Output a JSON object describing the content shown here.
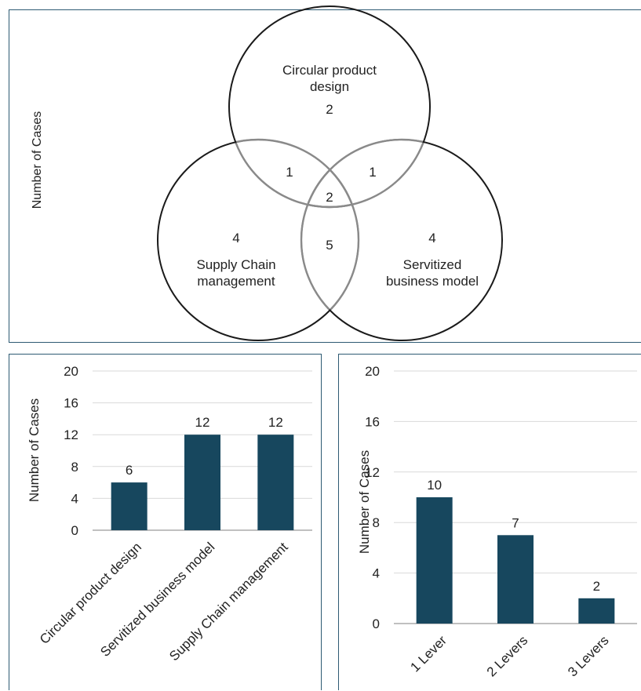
{
  "chart_data": [
    {
      "type": "venn",
      "ylabel": "Number of Cases",
      "sets": [
        {
          "name": "Circular product design",
          "label_lines": [
            "Circular product",
            "design"
          ],
          "only": 2
        },
        {
          "name": "Supply Chain management",
          "label_lines": [
            "Supply Chain",
            "management"
          ],
          "only": 4
        },
        {
          "name": "Servitized business model",
          "label_lines": [
            "Servitized",
            "business model"
          ],
          "only": 4
        }
      ],
      "intersections": [
        {
          "sets": [
            "Circular product design",
            "Supply Chain management"
          ],
          "value": 1
        },
        {
          "sets": [
            "Circular product design",
            "Servitized business model"
          ],
          "value": 1
        },
        {
          "sets": [
            "Circular product design",
            "Supply Chain management",
            "Servitized business model"
          ],
          "value": 2
        },
        {
          "sets": [
            "Supply Chain management",
            "Servitized business model"
          ],
          "value": 5
        }
      ]
    },
    {
      "type": "bar",
      "categories": [
        "Circular product design",
        "Servitized business model",
        "Supply Chain management"
      ],
      "values": [
        6,
        12,
        12
      ],
      "ylabel": "Number of Cases",
      "ylim": [
        0,
        20
      ],
      "yticks": [
        0,
        4,
        8,
        12,
        16,
        20
      ],
      "grid": true,
      "bar_color": "#17475e"
    },
    {
      "type": "bar",
      "categories": [
        "1 Lever",
        "2 Levers",
        "3 Levers"
      ],
      "values": [
        10,
        7,
        2
      ],
      "ylabel": "Number of Cases",
      "ylim": [
        0,
        20
      ],
      "yticks": [
        0,
        4,
        8,
        12,
        16,
        20
      ],
      "grid": true,
      "bar_color": "#17475e"
    }
  ]
}
